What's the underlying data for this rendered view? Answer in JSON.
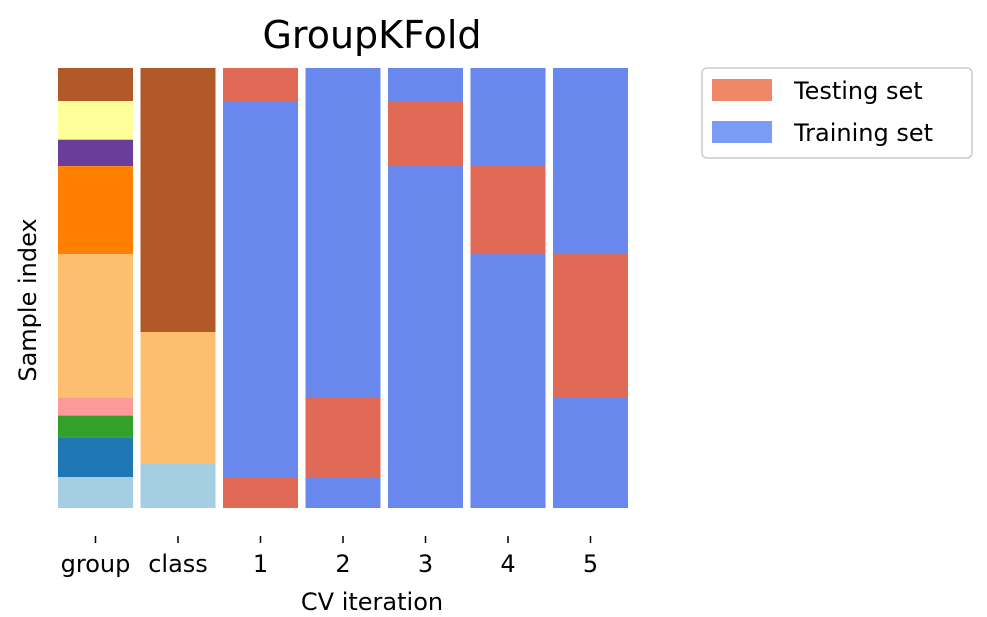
{
  "chart_data": {
    "type": "heatmap",
    "title": "GroupKFold",
    "xlabel": "CV iteration",
    "ylabel": "Sample index",
    "n_samples": 100,
    "ylim": [
      0,
      100
    ],
    "columns": [
      "group",
      "class",
      "1",
      "2",
      "3",
      "4",
      "5"
    ],
    "legend": {
      "placement": "upper right, outside",
      "entries": [
        {
          "label": "Testing set",
          "color": "#EE8866"
        },
        {
          "label": "Training set",
          "color": "#7B9CF5"
        }
      ]
    },
    "colors": {
      "testing": "#E06A55",
      "training": "#6888EE",
      "groups": [
        "#B15928",
        "#FFFF99",
        "#6A3D9A",
        "#FF7F00",
        "#FDBF6F",
        "#FB9A99",
        "#33A02C",
        "#1F78B4",
        "#A6CEE3"
      ],
      "classes": [
        "#B15928",
        "#FDBF6F",
        "#A6CEE3"
      ]
    },
    "group_column": [
      {
        "group": 0,
        "start": 0,
        "end": 7.5,
        "color": "#B15928"
      },
      {
        "group": 1,
        "start": 7.5,
        "end": 16.3,
        "color": "#FFFF99"
      },
      {
        "group": 2,
        "start": 16.3,
        "end": 22.3,
        "color": "#6A3D9A"
      },
      {
        "group": 3,
        "start": 22.3,
        "end": 42.3,
        "color": "#FF7F00"
      },
      {
        "group": 4,
        "start": 42.3,
        "end": 75,
        "color": "#FDBF6F"
      },
      {
        "group": 5,
        "start": 75,
        "end": 79,
        "color": "#FB9A99"
      },
      {
        "group": 6,
        "start": 79,
        "end": 84,
        "color": "#33A02C"
      },
      {
        "group": 7,
        "start": 84,
        "end": 93,
        "color": "#1F78B4"
      },
      {
        "group": 8,
        "start": 93,
        "end": 100,
        "color": "#A6CEE3"
      }
    ],
    "class_column": [
      {
        "class": 0,
        "start": 0,
        "end": 60,
        "color": "#B15928"
      },
      {
        "class": 1,
        "start": 60,
        "end": 90,
        "color": "#FDBF6F"
      },
      {
        "class": 2,
        "start": 90,
        "end": 100,
        "color": "#A6CEE3"
      }
    ],
    "folds": [
      {
        "name": "1",
        "test_ranges": [
          [
            0,
            7.5
          ],
          [
            93,
            100
          ]
        ]
      },
      {
        "name": "2",
        "test_ranges": [
          [
            75,
            93
          ]
        ]
      },
      {
        "name": "3",
        "test_ranges": [
          [
            7.5,
            22.3
          ]
        ]
      },
      {
        "name": "4",
        "test_ranges": [
          [
            22.3,
            42.3
          ]
        ]
      },
      {
        "name": "5",
        "test_ranges": [
          [
            42.3,
            75
          ]
        ]
      }
    ]
  }
}
